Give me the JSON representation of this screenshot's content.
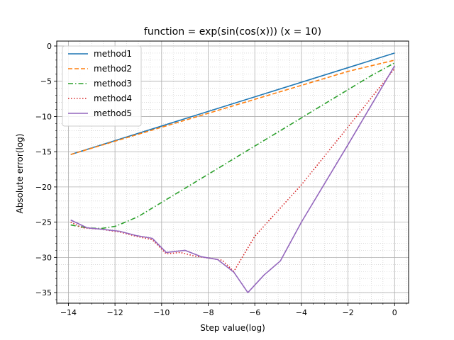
{
  "chart_data": {
    "type": "line",
    "title": "function = exp(sin(cos(x))) (x = 10)",
    "xlabel": "Step value(log)",
    "ylabel": "Absolute error(log)",
    "xlim": [
      -14.5,
      0.6
    ],
    "ylim": [
      -36.5,
      0.7
    ],
    "xticks": [
      -14,
      -12,
      -10,
      -8,
      -6,
      -4,
      -2,
      0
    ],
    "yticks": [
      0,
      -5,
      -10,
      -15,
      -20,
      -25,
      -30,
      -35
    ],
    "x_minor_step": 0.5,
    "y_minor_step": 1,
    "grid": true,
    "legend_position": "upper-left",
    "series": [
      {
        "name": "method1",
        "color": "#1f77b4",
        "dash": "solid",
        "x": [
          -13.9,
          0
        ],
        "y": [
          -15.4,
          -1.0
        ]
      },
      {
        "name": "method2",
        "color": "#ff7f0e",
        "dash": "dashed",
        "x": [
          -13.9,
          -2.0,
          0
        ],
        "y": [
          -15.4,
          -3.6,
          -2.0
        ]
      },
      {
        "name": "method3",
        "color": "#2ca02c",
        "dash": "dashdot",
        "x": [
          -13.9,
          -13.2,
          -12.6,
          -12.0,
          -11.7,
          -11.0,
          -10.5,
          -10.0,
          -9.0,
          -8.0,
          -7.0,
          -6.0,
          -5.0,
          -4.0,
          -3.0,
          -2.0,
          -1.0,
          0
        ],
        "y": [
          -25.4,
          -25.8,
          -25.9,
          -25.6,
          -25.2,
          -24.2,
          -23.2,
          -22.2,
          -20.2,
          -18.2,
          -16.2,
          -14.2,
          -12.2,
          -10.2,
          -8.2,
          -6.2,
          -4.2,
          -2.4
        ]
      },
      {
        "name": "method4",
        "color": "#d62728",
        "dash": "dotted",
        "x": [
          -13.9,
          -13.4,
          -12.6,
          -11.8,
          -11.1,
          -10.4,
          -9.8,
          -9.2,
          -8.6,
          -8.0,
          -7.4,
          -6.9,
          -6.0,
          -4.0,
          -2.0,
          0
        ],
        "y": [
          -25.0,
          -25.8,
          -26.0,
          -26.4,
          -27.0,
          -27.5,
          -29.5,
          -29.3,
          -29.8,
          -30.1,
          -30.4,
          -32.0,
          -27.0,
          -19.7,
          -11.5,
          -3.2
        ]
      },
      {
        "name": "method5",
        "color": "#9467bd",
        "dash": "solid",
        "x": [
          -13.9,
          -13.2,
          -12.6,
          -11.8,
          -11.1,
          -10.4,
          -9.8,
          -9.0,
          -8.3,
          -7.6,
          -6.9,
          -6.3,
          -5.6,
          -4.9,
          -4.0,
          -2.0,
          0
        ],
        "y": [
          -24.7,
          -25.8,
          -26.0,
          -26.3,
          -26.9,
          -27.3,
          -29.3,
          -29.0,
          -29.9,
          -30.3,
          -32.1,
          -35.0,
          -32.5,
          -30.5,
          -25.0,
          -14.0,
          -2.8
        ]
      }
    ]
  }
}
